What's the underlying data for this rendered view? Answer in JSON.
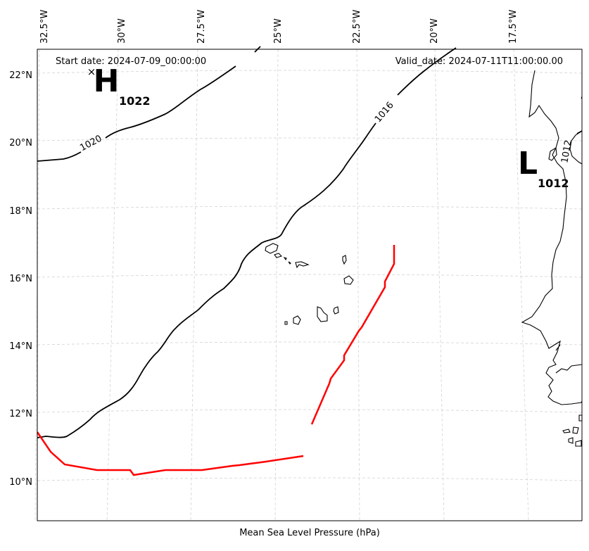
{
  "map": {
    "start_date_text": "Start date: 2024-07-09_00:00:00",
    "valid_date_text": "Valid_date: 2024-07-11T11:00:00.00",
    "footer_label": "Mean Sea Level Pressure (hPa)",
    "lon_ticks": [
      "32.5°W",
      "30°W",
      "27.5°W",
      "25°W",
      "22.5°W",
      "20°W",
      "17.5°W"
    ],
    "lat_ticks": [
      "22°N",
      "20°N",
      "18°N",
      "16°N",
      "14°N",
      "12°N",
      "10°N"
    ],
    "high": {
      "letter": "H",
      "value": "1022",
      "marker": "×"
    },
    "low": {
      "letter": "L",
      "value": "1012"
    },
    "isobar_labels": [
      "1020",
      "1016",
      "1012"
    ],
    "colors": {
      "isobar": "#000000",
      "track": "#ff0000",
      "grid": "#d3d3d3"
    }
  }
}
